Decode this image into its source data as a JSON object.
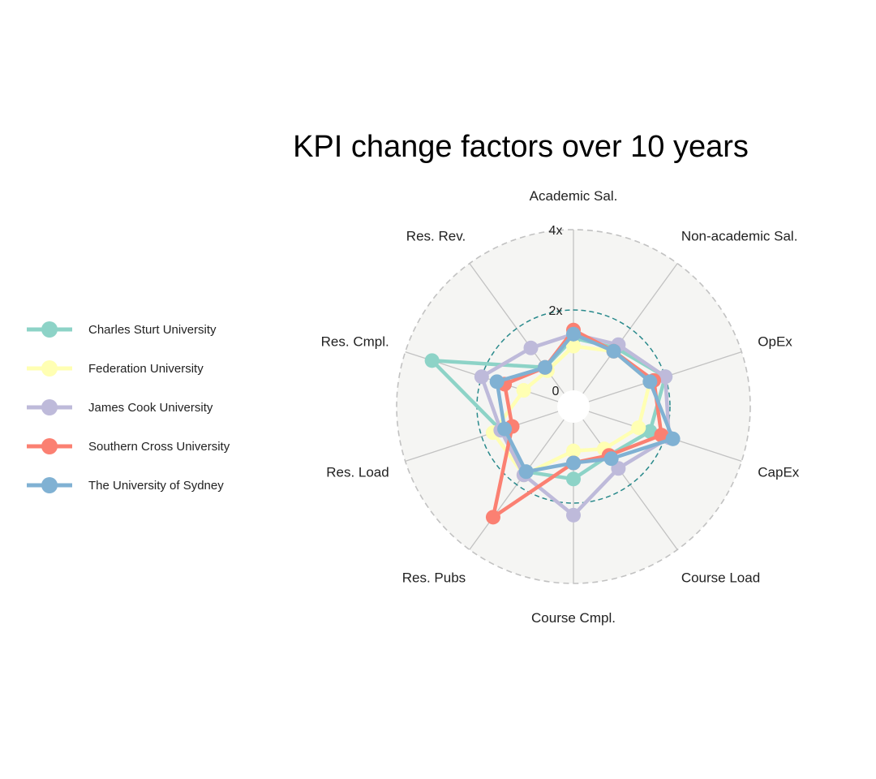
{
  "chart_data": {
    "type": "radar",
    "title": "KPI change factors over 10 years",
    "axes": [
      "Academic Sal.",
      "Non-academic Sal.",
      "OpEx",
      "CapEx",
      "Course Load",
      "Course Cmpl.",
      "Res. Pubs",
      "Res. Load",
      "Res. Cmpl.",
      "Res. Rev."
    ],
    "rticks": [
      {
        "value": 0,
        "label": "0"
      },
      {
        "value": 2,
        "label": "2x"
      },
      {
        "value": 4,
        "label": "4x"
      }
    ],
    "rlim": [
      0,
      4
    ],
    "reference_ring": 2,
    "grid": true,
    "legend_position": "left",
    "series": [
      {
        "name": "Charles Sturt University",
        "color": "#8dd3c7",
        "values": [
          1.3,
          1.4,
          2.0,
          1.6,
          1.1,
          1.4,
          1.6,
          1.5,
          3.3,
          0.8
        ]
      },
      {
        "name": "Federation University",
        "color": "#ffffb3",
        "values": [
          1.1,
          1.3,
          1.6,
          1.3,
          0.9,
          0.7,
          1.7,
          1.7,
          0.9,
          0.7
        ]
      },
      {
        "name": "James Cook University",
        "color": "#bebada",
        "values": [
          1.4,
          1.5,
          2.0,
          2.1,
          1.5,
          2.3,
          1.7,
          1.5,
          2.0,
          1.4
        ]
      },
      {
        "name": "Southern Cross University",
        "color": "#fb8072",
        "values": [
          1.5,
          1.3,
          1.7,
          1.9,
          1.1,
          1.0,
          3.0,
          1.2,
          1.4,
          0.8
        ]
      },
      {
        "name": "The University of Sydney",
        "color": "#80b1d3",
        "values": [
          1.4,
          1.3,
          1.6,
          2.2,
          1.2,
          1.0,
          1.6,
          1.4,
          1.6,
          0.8
        ]
      }
    ]
  }
}
